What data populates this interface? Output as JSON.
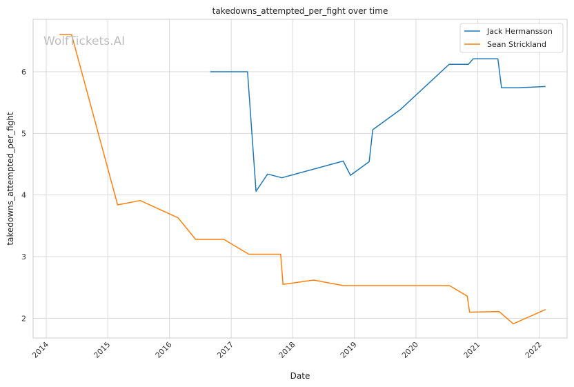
{
  "watermark": "WolfTickets.AI",
  "chart_data": {
    "type": "line",
    "title": "takedowns_attempted_per_fight over time",
    "xlabel": "Date",
    "ylabel": "takedowns_attempted_per_fight",
    "x_axis": "date",
    "xlim": [
      "2013-10-15",
      "2022-06-15"
    ],
    "ylim": [
      1.68,
      6.85
    ],
    "x_ticks": [
      "2014",
      "2015",
      "2016",
      "2017",
      "2018",
      "2019",
      "2020",
      "2021",
      "2022"
    ],
    "y_ticks": [
      2,
      3,
      4,
      5,
      6
    ],
    "grid": true,
    "legend_position": "top-right",
    "series": [
      {
        "name": "Jack Hermansson",
        "color": "#1f77b4",
        "points": [
          [
            "2016-09-01",
            6.0
          ],
          [
            "2017-04-08",
            6.0
          ],
          [
            "2017-05-28",
            4.06
          ],
          [
            "2017-08-05",
            4.34
          ],
          [
            "2017-10-28",
            4.28
          ],
          [
            "2018-10-27",
            4.55
          ],
          [
            "2018-12-09",
            4.32
          ],
          [
            "2019-03-30",
            4.54
          ],
          [
            "2019-04-20",
            5.06
          ],
          [
            "2019-09-28",
            5.38
          ],
          [
            "2020-07-16",
            6.12
          ],
          [
            "2020-11-07",
            6.12
          ],
          [
            "2020-12-05",
            6.21
          ],
          [
            "2021-05-01",
            6.21
          ],
          [
            "2021-05-22",
            5.74
          ],
          [
            "2021-08-28",
            5.74
          ],
          [
            "2022-02-05",
            5.76
          ]
        ]
      },
      {
        "name": "Sean Strickland",
        "color": "#ff7f0e",
        "points": [
          [
            "2014-03-22",
            6.6
          ],
          [
            "2014-05-31",
            6.6
          ],
          [
            "2015-02-28",
            3.84
          ],
          [
            "2015-07-12",
            3.91
          ],
          [
            "2016-02-21",
            3.63
          ],
          [
            "2016-06-04",
            3.28
          ],
          [
            "2016-11-19",
            3.28
          ],
          [
            "2017-04-15",
            3.04
          ],
          [
            "2017-10-21",
            3.04
          ],
          [
            "2017-11-04",
            2.55
          ],
          [
            "2018-05-05",
            2.62
          ],
          [
            "2018-10-27",
            2.53
          ],
          [
            "2020-07-18",
            2.53
          ],
          [
            "2020-10-31",
            2.36
          ],
          [
            "2020-11-14",
            2.1
          ],
          [
            "2021-05-08",
            2.11
          ],
          [
            "2021-07-31",
            1.91
          ],
          [
            "2022-02-05",
            2.14
          ]
        ]
      }
    ]
  }
}
